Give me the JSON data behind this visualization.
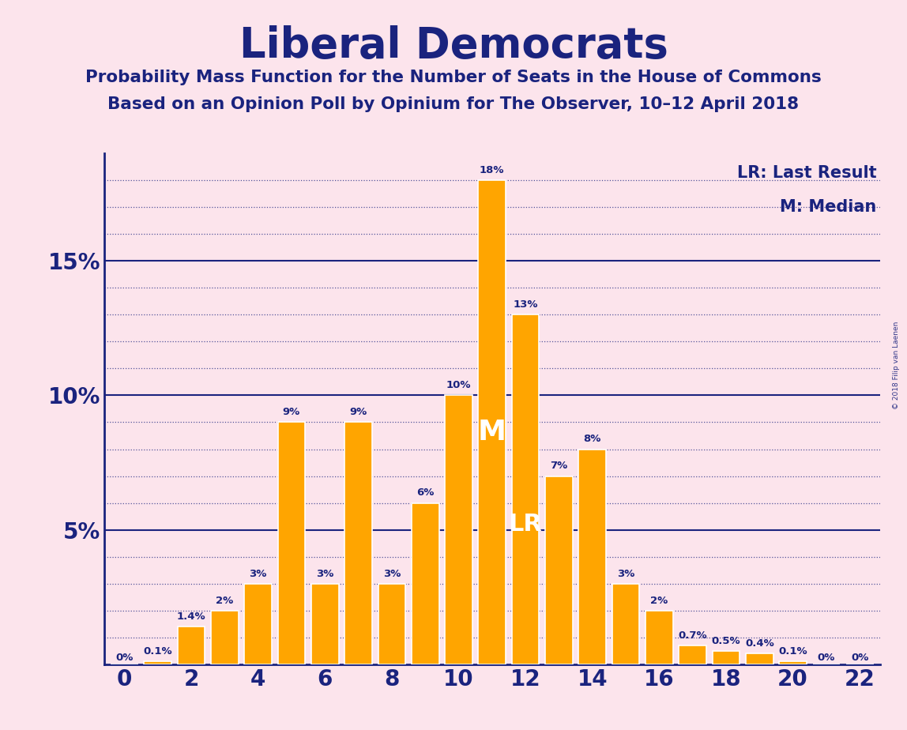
{
  "title": "Liberal Democrats",
  "subtitle1": "Probability Mass Function for the Number of Seats in the House of Commons",
  "subtitle2": "Based on an Opinion Poll by Opinium for The Observer, 10–12 April 2018",
  "watermark": "© 2018 Filip van Laenen",
  "background_color": "#fce4ec",
  "bar_color": "#FFA500",
  "bar_edge_color": "#ffffff",
  "title_color": "#1a237e",
  "axis_color": "#1a237e",
  "grid_color": "#1a237e",
  "seats": [
    0,
    1,
    2,
    3,
    4,
    5,
    6,
    7,
    8,
    9,
    10,
    11,
    12,
    13,
    14,
    15,
    16,
    17,
    18,
    19,
    20,
    21,
    22
  ],
  "probabilities": [
    0.0,
    0.001,
    0.014,
    0.02,
    0.03,
    0.09,
    0.03,
    0.09,
    0.03,
    0.06,
    0.1,
    0.18,
    0.13,
    0.07,
    0.08,
    0.03,
    0.02,
    0.007,
    0.005,
    0.004,
    0.001,
    0.0,
    0.0
  ],
  "labels": [
    "0%",
    "0.1%",
    "1.4%",
    "2%",
    "3%",
    "9%",
    "3%",
    "9%",
    "3%",
    "6%",
    "10%",
    "18%",
    "13%",
    "7%",
    "8%",
    "3%",
    "2%",
    "0.7%",
    "0.5%",
    "0.4%",
    "0.1%",
    "0%",
    "0%"
  ],
  "median_seat": 11,
  "lr_seat": 12,
  "ylim": [
    0,
    0.19
  ],
  "yticks": [
    0.05,
    0.1,
    0.15
  ],
  "ytick_labels": [
    "5%",
    "10%",
    "15%"
  ],
  "xticks": [
    0,
    2,
    4,
    6,
    8,
    10,
    12,
    14,
    16,
    18,
    20,
    22
  ],
  "legend_lr": "LR: Last Result",
  "legend_m": "M: Median"
}
